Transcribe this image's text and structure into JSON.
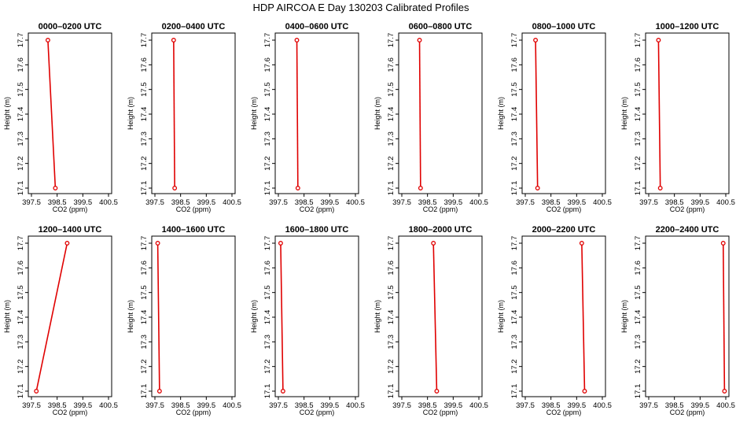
{
  "title": "HDP AIRCOA E  Day 130203  Calibrated Profiles",
  "chart_data": {
    "type": "line",
    "xlabel": "CO2 (ppm)",
    "ylabel": "Height (m)",
    "xlim": [
      397.5,
      400.5
    ],
    "ylim": [
      17.1,
      17.7
    ],
    "xticks": [
      "397.5",
      "398.5",
      "399.5",
      "400.5"
    ],
    "yticks": [
      "17.1",
      "17.2",
      "17.3",
      "17.4",
      "17.5",
      "17.6",
      "17.7"
    ],
    "line_color": "#e00000",
    "panels": [
      {
        "title": "0000–0200 UTC",
        "points": [
          {
            "x": 398.14,
            "y": 17.7
          },
          {
            "x": 398.43,
            "y": 17.1
          }
        ]
      },
      {
        "title": "0200–0400 UTC",
        "points": [
          {
            "x": 398.23,
            "y": 17.7
          },
          {
            "x": 398.27,
            "y": 17.1
          }
        ]
      },
      {
        "title": "0400–0600 UTC",
        "points": [
          {
            "x": 398.22,
            "y": 17.7
          },
          {
            "x": 398.26,
            "y": 17.1
          }
        ]
      },
      {
        "title": "0600–0800 UTC",
        "points": [
          {
            "x": 398.19,
            "y": 17.7
          },
          {
            "x": 398.23,
            "y": 17.1
          }
        ]
      },
      {
        "title": "0800–1000 UTC",
        "points": [
          {
            "x": 397.9,
            "y": 17.7
          },
          {
            "x": 397.98,
            "y": 17.1
          }
        ]
      },
      {
        "title": "1000–1200 UTC",
        "points": [
          {
            "x": 397.88,
            "y": 17.7
          },
          {
            "x": 397.95,
            "y": 17.1
          }
        ]
      },
      {
        "title": "1200–1400 UTC",
        "points": [
          {
            "x": 398.89,
            "y": 17.7
          },
          {
            "x": 397.69,
            "y": 17.1
          }
        ]
      },
      {
        "title": "1400–1600 UTC",
        "points": [
          {
            "x": 397.61,
            "y": 17.7
          },
          {
            "x": 397.68,
            "y": 17.1
          }
        ]
      },
      {
        "title": "1600–1800 UTC",
        "points": [
          {
            "x": 397.59,
            "y": 17.7
          },
          {
            "x": 397.68,
            "y": 17.1
          }
        ]
      },
      {
        "title": "1800–2000 UTC",
        "points": [
          {
            "x": 398.73,
            "y": 17.7
          },
          {
            "x": 398.86,
            "y": 17.1
          }
        ]
      },
      {
        "title": "2000–2200 UTC",
        "points": [
          {
            "x": 399.7,
            "y": 17.7
          },
          {
            "x": 399.81,
            "y": 17.1
          }
        ]
      },
      {
        "title": "2200–2400 UTC",
        "points": [
          {
            "x": 400.4,
            "y": 17.7
          },
          {
            "x": 400.45,
            "y": 17.1
          }
        ]
      }
    ]
  }
}
